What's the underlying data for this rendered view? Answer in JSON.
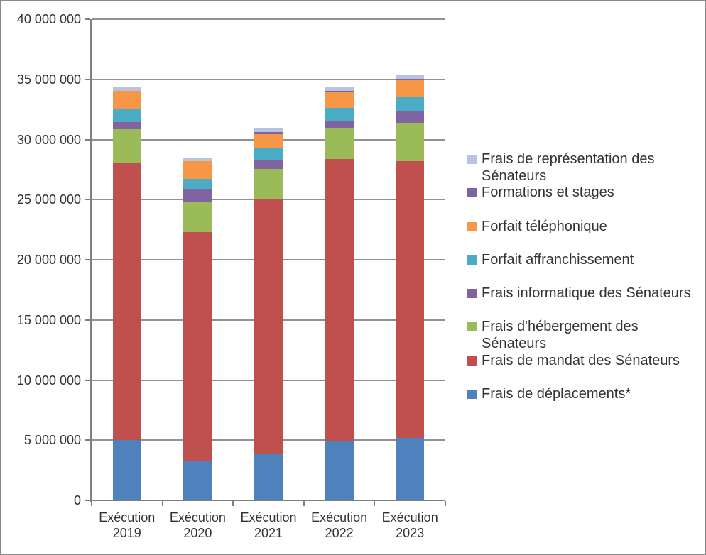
{
  "chart_data": {
    "type": "bar",
    "stacked": true,
    "title": "",
    "xlabel": "",
    "ylabel": "",
    "grid": true,
    "legend_position": "right",
    "legend_order": "reverse-of-series",
    "ylim": [
      0,
      40000000
    ],
    "categories": [
      "Exécution 2019",
      "Exécution 2020",
      "Exécution 2021",
      "Exécution 2022",
      "Exécution 2023"
    ],
    "series": [
      {
        "name": "Frais de déplacements*",
        "color": "#4f81bd",
        "values": [
          5000000,
          3250000,
          3850000,
          4950000,
          5200000
        ]
      },
      {
        "name": "Frais de mandat des Sénateurs",
        "color": "#c0504d",
        "values": [
          23100000,
          19050000,
          21150000,
          23400000,
          23000000
        ]
      },
      {
        "name": "Frais d'hébergement des Sénateurs",
        "color": "#9bbb59",
        "values": [
          2750000,
          2550000,
          2550000,
          2650000,
          3150000
        ]
      },
      {
        "name": "Frais informatique des Sénateurs",
        "color": "#8064a2",
        "values": [
          600000,
          1000000,
          700000,
          550000,
          1050000
        ]
      },
      {
        "name": "Forfait affranchissement",
        "color": "#4bacc6",
        "values": [
          1050000,
          900000,
          1000000,
          1100000,
          1100000
        ]
      },
      {
        "name": "Forfait téléphonique",
        "color": "#f79646",
        "values": [
          1550000,
          1450000,
          1200000,
          1300000,
          1400000
        ]
      },
      {
        "name": "Formations et stages",
        "color": "#7e63a5",
        "values": [
          0,
          0,
          150000,
          100000,
          150000
        ]
      },
      {
        "name": "Frais de représentation des Sénateurs",
        "color": "#b8c4de",
        "values": [
          350000,
          250000,
          300000,
          300000,
          350000
        ]
      }
    ],
    "y_ticks": [
      {
        "value": 0,
        "label": "0"
      },
      {
        "value": 5000000,
        "label": "5 000 000"
      },
      {
        "value": 10000000,
        "label": "10 000 000"
      },
      {
        "value": 15000000,
        "label": "15 000 000"
      },
      {
        "value": 20000000,
        "label": "20 000 000"
      },
      {
        "value": 25000000,
        "label": "25 000 000"
      },
      {
        "value": 30000000,
        "label": "30 000 000"
      },
      {
        "value": 35000000,
        "label": "35 000 000"
      },
      {
        "value": 40000000,
        "label": "40 000 000"
      }
    ]
  },
  "colors": {
    "frame_border": "#8a8a8a",
    "axis": "#7f7f7f",
    "gridline": "#919191",
    "text": "#333333",
    "background": "#ffffff"
  }
}
